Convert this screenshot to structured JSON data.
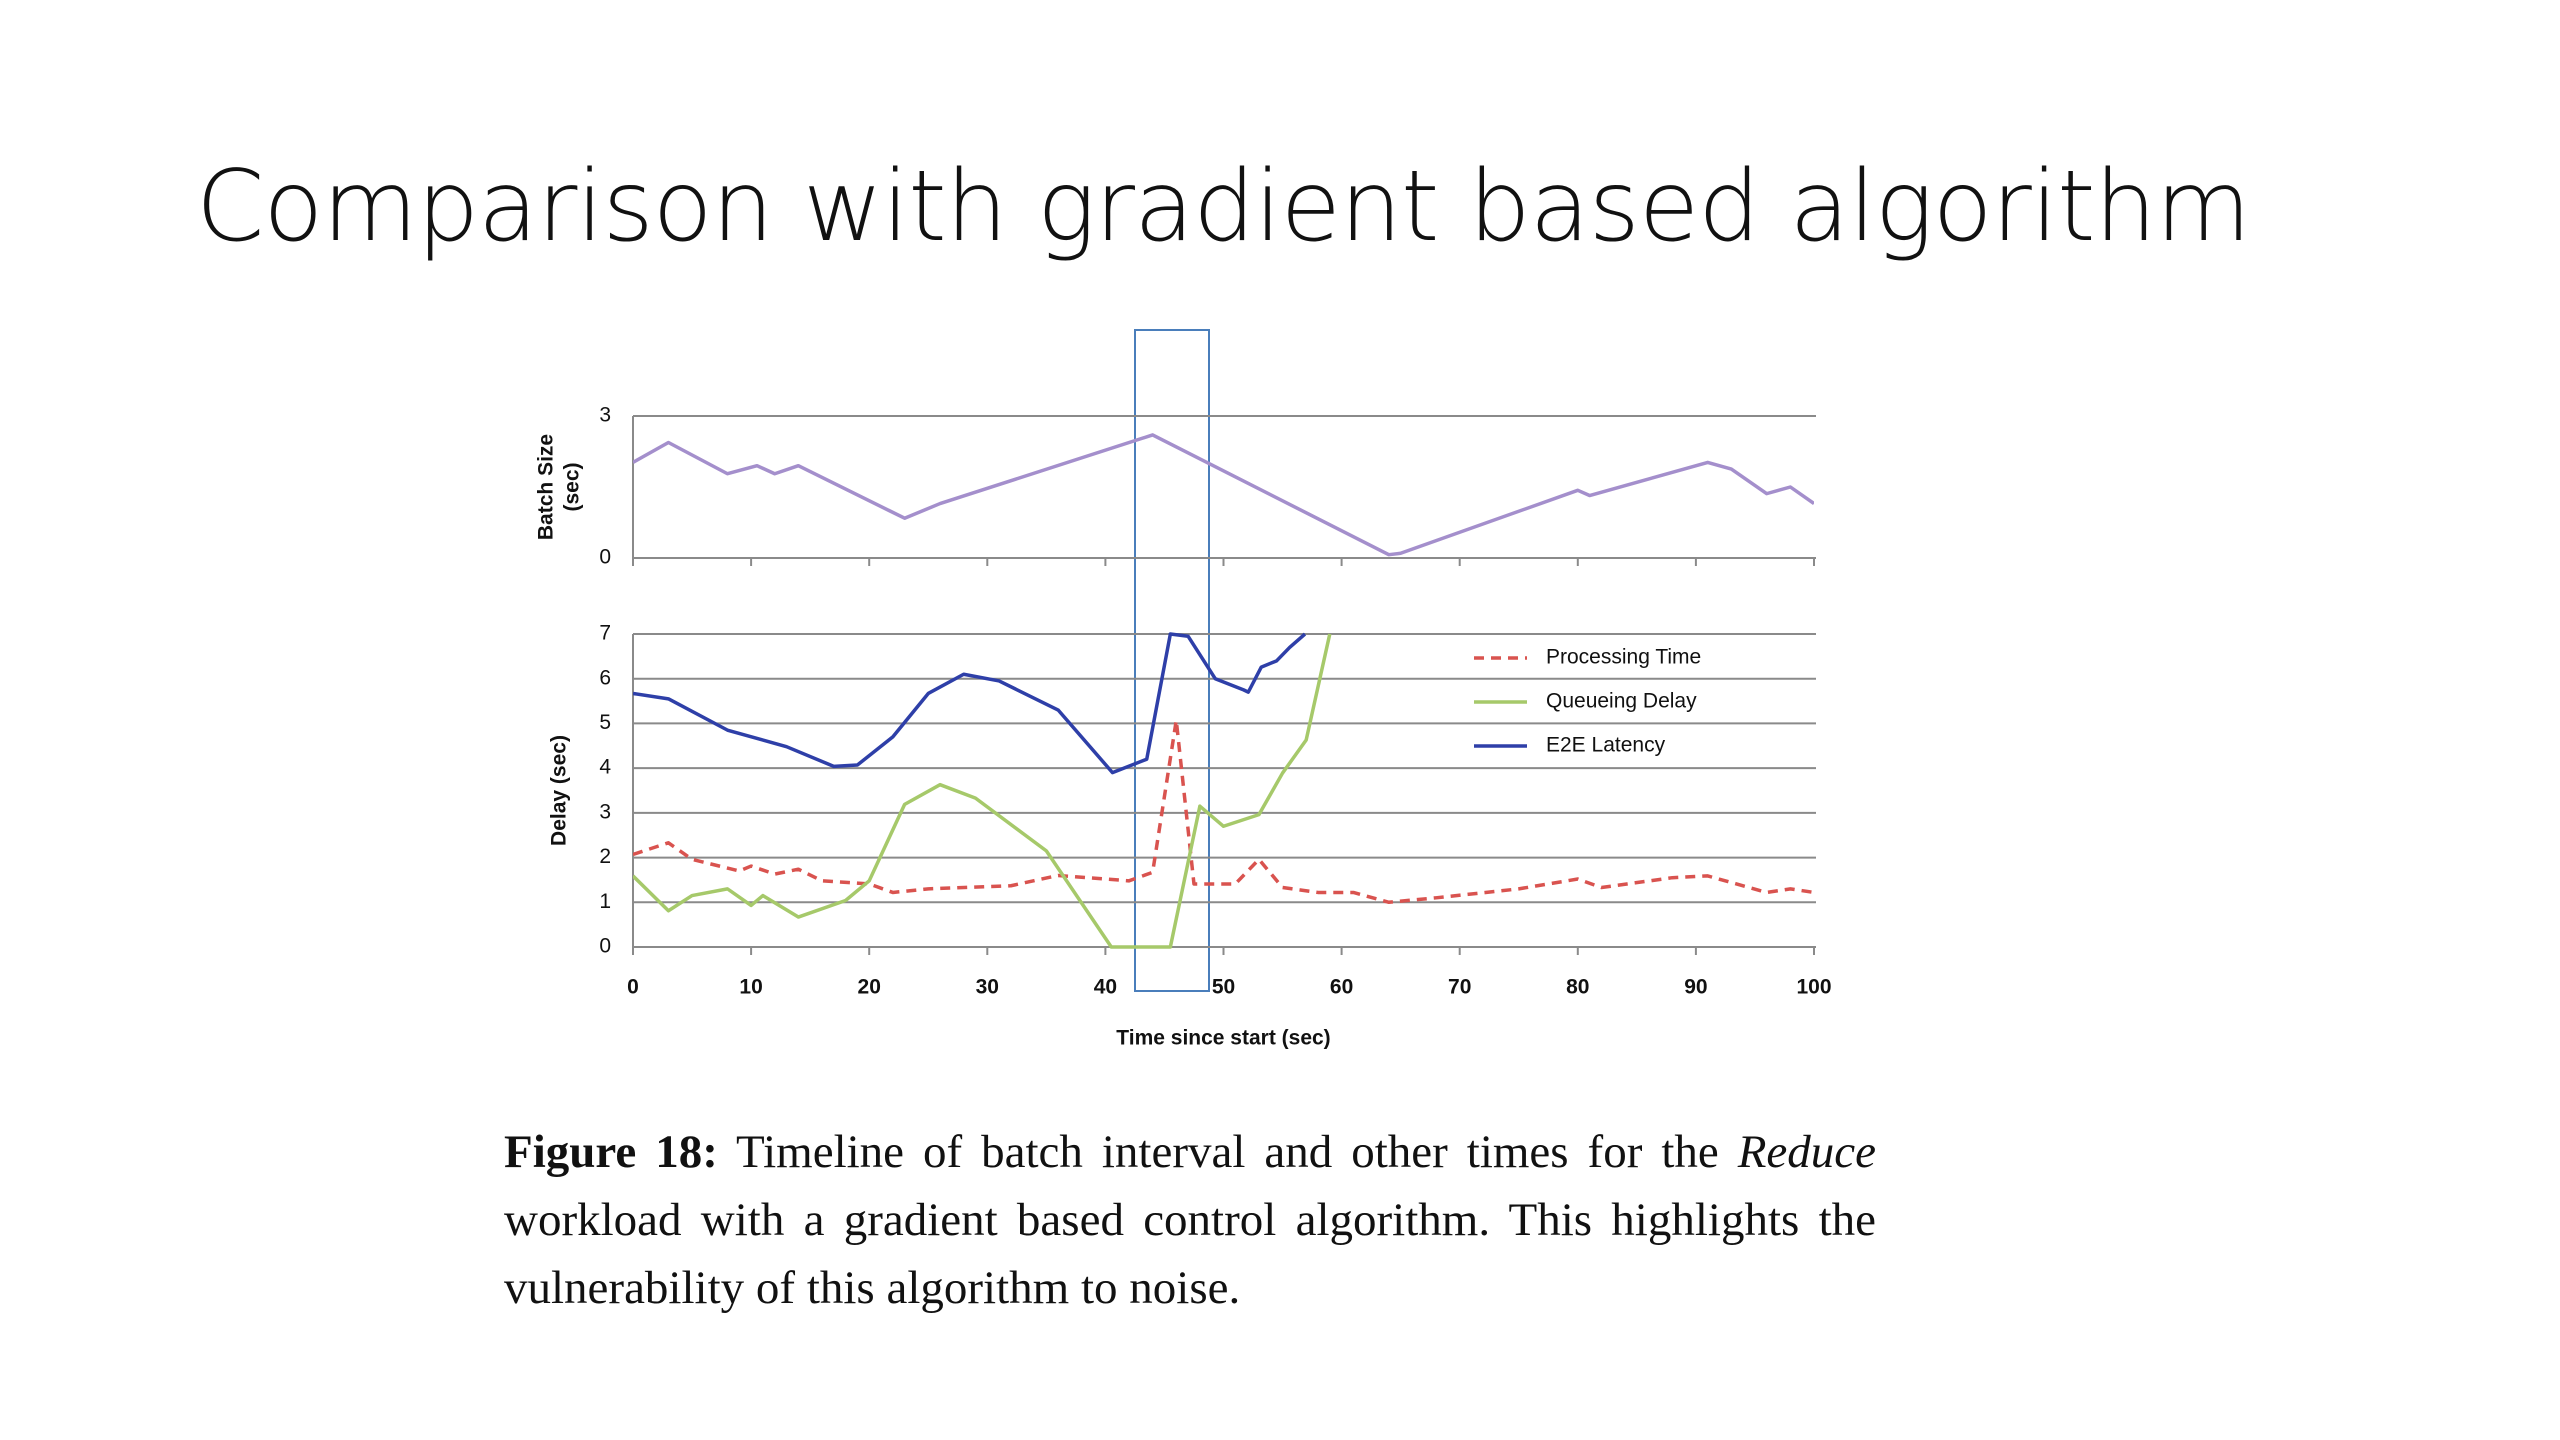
{
  "title": "Comparison with gradient based algorithm",
  "chart_data": [
    {
      "type": "line",
      "ylabel": [
        "Batch Size",
        "(sec)"
      ],
      "xlim": [
        0,
        100
      ],
      "xticks": [
        0,
        10,
        20,
        30,
        40,
        50,
        60,
        70,
        80,
        90,
        100
      ],
      "show_xtick_labels": false,
      "ylim": [
        0,
        3
      ],
      "yticks": [
        0,
        3
      ],
      "grid": true,
      "series": [
        {
          "color": "#a48fcc",
          "style": "solid",
          "x": [
            0,
            3,
            8,
            10.5,
            12,
            14,
            23,
            26,
            44,
            64,
            65,
            80,
            81,
            91,
            93,
            96,
            98,
            100
          ],
          "values": [
            2.02,
            2.44,
            1.78,
            1.95,
            1.78,
            1.95,
            0.84,
            1.15,
            2.6,
            0.07,
            0.1,
            1.43,
            1.32,
            2.02,
            1.88,
            1.36,
            1.5,
            1.15
          ]
        }
      ]
    },
    {
      "type": "line",
      "ylabel": [
        "Delay (sec)"
      ],
      "xlabel": "Time since start (sec)",
      "xlim": [
        0,
        100
      ],
      "xticks": [
        0,
        10,
        20,
        30,
        40,
        50,
        60,
        70,
        80,
        90,
        100
      ],
      "show_xtick_labels": true,
      "ylim": [
        0,
        7
      ],
      "yticks": [
        0,
        1,
        2,
        3,
        4,
        5,
        6,
        7
      ],
      "grid": true,
      "legend": "upper right",
      "series": [
        {
          "name": "Processing Time",
          "color": "#d9534f",
          "style": "dashed",
          "x": [
            0,
            3,
            5,
            9,
            10,
            12,
            14,
            16,
            20,
            22,
            25,
            32,
            36,
            42,
            44,
            46,
            47.5,
            51,
            53,
            55,
            58,
            61,
            64,
            68,
            75,
            80,
            82,
            88,
            91,
            96,
            98,
            100
          ],
          "values": [
            2.07,
            2.33,
            1.96,
            1.7,
            1.81,
            1.63,
            1.74,
            1.48,
            1.41,
            1.22,
            1.3,
            1.37,
            1.6,
            1.48,
            1.67,
            5.07,
            1.41,
            1.41,
            1.96,
            1.33,
            1.22,
            1.22,
            1.0,
            1.1,
            1.3,
            1.52,
            1.33,
            1.55,
            1.59,
            1.22,
            1.3,
            1.22
          ]
        },
        {
          "name": "Queueing Delay",
          "color": "#a6c96a",
          "style": "solid",
          "x": [
            0,
            3,
            5,
            8,
            10,
            11,
            14,
            18,
            20,
            23,
            26,
            29,
            35,
            40.5,
            45.5,
            48,
            50,
            53,
            55,
            57,
            59
          ],
          "values": [
            1.59,
            0.81,
            1.15,
            1.3,
            0.93,
            1.15,
            0.67,
            1.04,
            1.48,
            3.19,
            3.63,
            3.33,
            2.15,
            0,
            0,
            3.15,
            2.7,
            2.96,
            3.89,
            4.63,
            7
          ]
        },
        {
          "name": "E2E Latency",
          "color": "#2e3fa8",
          "style": "solid",
          "x": [
            0,
            3,
            8,
            13,
            17,
            19,
            22,
            25,
            28,
            31,
            36,
            40.6,
            43.5,
            45.5,
            47,
            49.3,
            51.7,
            52.1,
            53.2,
            54.5,
            55.6,
            56.9
          ],
          "values": [
            5.67,
            5.55,
            4.85,
            4.48,
            4.04,
            4.07,
            4.7,
            5.67,
            6.1,
            5.95,
            5.3,
            3.9,
            4.2,
            7,
            6.95,
            6.0,
            5.75,
            5.7,
            6.26,
            6.4,
            6.7,
            7
          ]
        }
      ]
    }
  ],
  "caption": {
    "label": "Figure 18:",
    "before": "Timeline of batch interval and other times for the",
    "emphasis": "Reduce",
    "after": "workload with a gradient based control algorithm. This highlights the vulnerability of this algorithm to noise."
  }
}
